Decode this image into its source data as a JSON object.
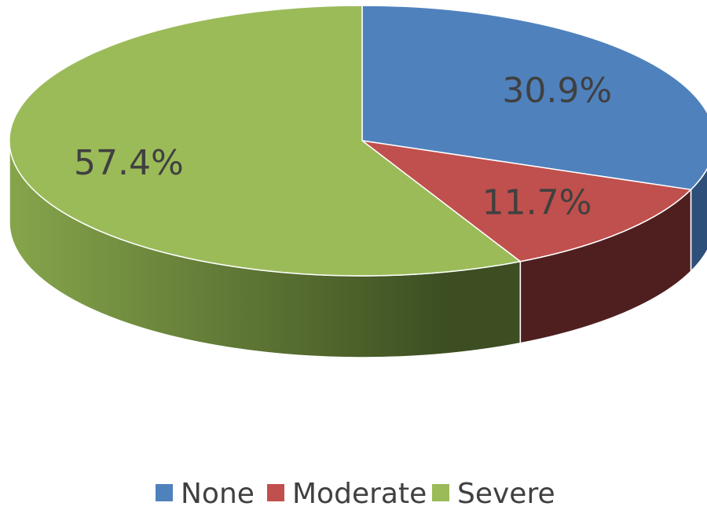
{
  "chart_data": {
    "type": "pie",
    "three_d": true,
    "categories": [
      "None",
      "Moderate",
      "Severe"
    ],
    "values": [
      30.9,
      11.7,
      57.4
    ],
    "data_labels": [
      "30.9%",
      "11.7%",
      "57.4%"
    ],
    "colors": [
      "#4F81BD",
      "#C0504D",
      "#9BBB59"
    ],
    "side_colors": [
      "#2E4F79",
      "#4F1F1F",
      "#3C4E22"
    ],
    "side_light_colors": [
      "#4F81BD",
      "#7A2D2B",
      "#86A54B"
    ],
    "legend": {
      "position": "bottom",
      "entries": [
        "None",
        "Moderate",
        "Severe"
      ]
    },
    "start": "12 o'clock",
    "direction": "clockwise"
  }
}
